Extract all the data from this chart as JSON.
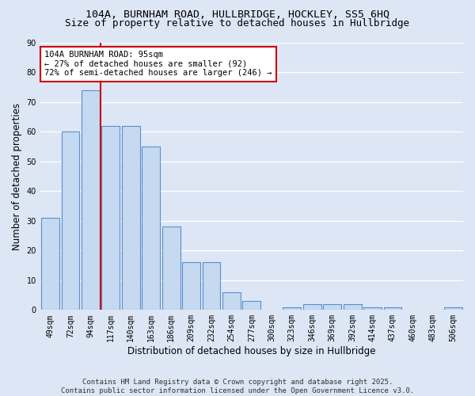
{
  "title1": "104A, BURNHAM ROAD, HULLBRIDGE, HOCKLEY, SS5 6HQ",
  "title2": "Size of property relative to detached houses in Hullbridge",
  "xlabel": "Distribution of detached houses by size in Hullbridge",
  "ylabel": "Number of detached properties",
  "categories": [
    "49sqm",
    "72sqm",
    "94sqm",
    "117sqm",
    "140sqm",
    "163sqm",
    "186sqm",
    "209sqm",
    "232sqm",
    "254sqm",
    "277sqm",
    "300sqm",
    "323sqm",
    "346sqm",
    "369sqm",
    "392sqm",
    "414sqm",
    "437sqm",
    "460sqm",
    "483sqm",
    "506sqm"
  ],
  "values": [
    31,
    60,
    74,
    62,
    62,
    55,
    28,
    16,
    16,
    6,
    3,
    0,
    1,
    2,
    2,
    2,
    1,
    1,
    0,
    0,
    1
  ],
  "bar_color": "#c5d9f0",
  "bar_edge_color": "#5b8fcc",
  "background_color": "#dce6f5",
  "grid_color": "#ffffff",
  "vline_index": 2,
  "annotation_text_line1": "104A BURNHAM ROAD: 95sqm",
  "annotation_text_line2": "← 27% of detached houses are smaller (92)",
  "annotation_text_line3": "72% of semi-detached houses are larger (246) →",
  "annotation_box_facecolor": "#ffffff",
  "annotation_box_edgecolor": "#cc0000",
  "vline_color": "#cc0000",
  "ylim": [
    0,
    90
  ],
  "yticks": [
    0,
    10,
    20,
    30,
    40,
    50,
    60,
    70,
    80,
    90
  ],
  "footer_line1": "Contains HM Land Registry data © Crown copyright and database right 2025.",
  "footer_line2": "Contains public sector information licensed under the Open Government Licence v3.0.",
  "title1_fontsize": 9.5,
  "title2_fontsize": 9,
  "ylabel_fontsize": 8.5,
  "xlabel_fontsize": 8.5,
  "tick_fontsize": 7,
  "annotation_fontsize": 7.5,
  "footer_fontsize": 6.5
}
